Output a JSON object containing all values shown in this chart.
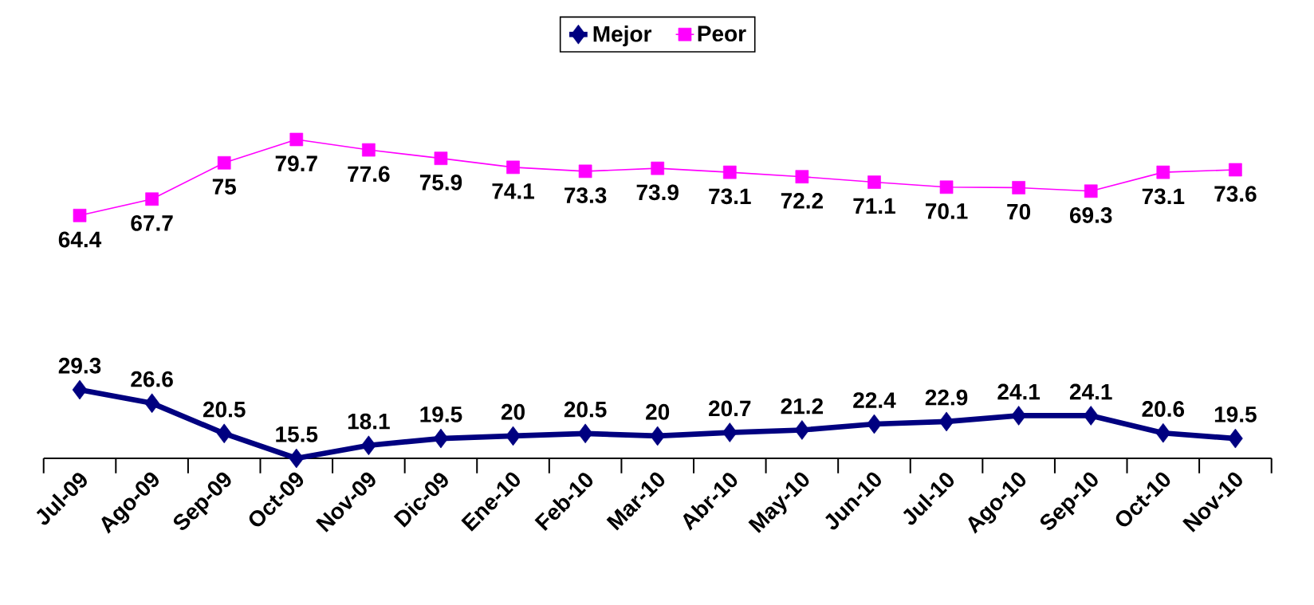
{
  "chart_data": {
    "type": "line",
    "categories": [
      "Jul-09",
      "Ago-09",
      "Sep-09",
      "Oct-09",
      "Nov-09",
      "Dic-09",
      "Ene-10",
      "Feb-10",
      "Mar-10",
      "Abr-10",
      "May-10",
      "Jun-10",
      "Jul-10",
      "Ago-10",
      "Sep-10",
      "Oct-10",
      "Nov-10"
    ],
    "series": [
      {
        "name": "Mejor",
        "color": "#000080",
        "marker": "diamond",
        "values": [
          29.3,
          26.6,
          20.5,
          15.5,
          18.1,
          19.5,
          20,
          20.5,
          20,
          20.7,
          21.2,
          22.4,
          22.9,
          24.1,
          24.1,
          20.6,
          19.5
        ]
      },
      {
        "name": "Peor",
        "color": "#ff00ff",
        "marker": "square",
        "values": [
          64.4,
          67.7,
          75,
          79.7,
          77.6,
          75.9,
          74.1,
          73.3,
          73.9,
          73.1,
          72.2,
          71.1,
          70.1,
          70,
          69.3,
          73.1,
          73.6
        ]
      }
    ],
    "tick_labels": "x",
    "data_labels": true,
    "legend": "top",
    "grid": false
  }
}
